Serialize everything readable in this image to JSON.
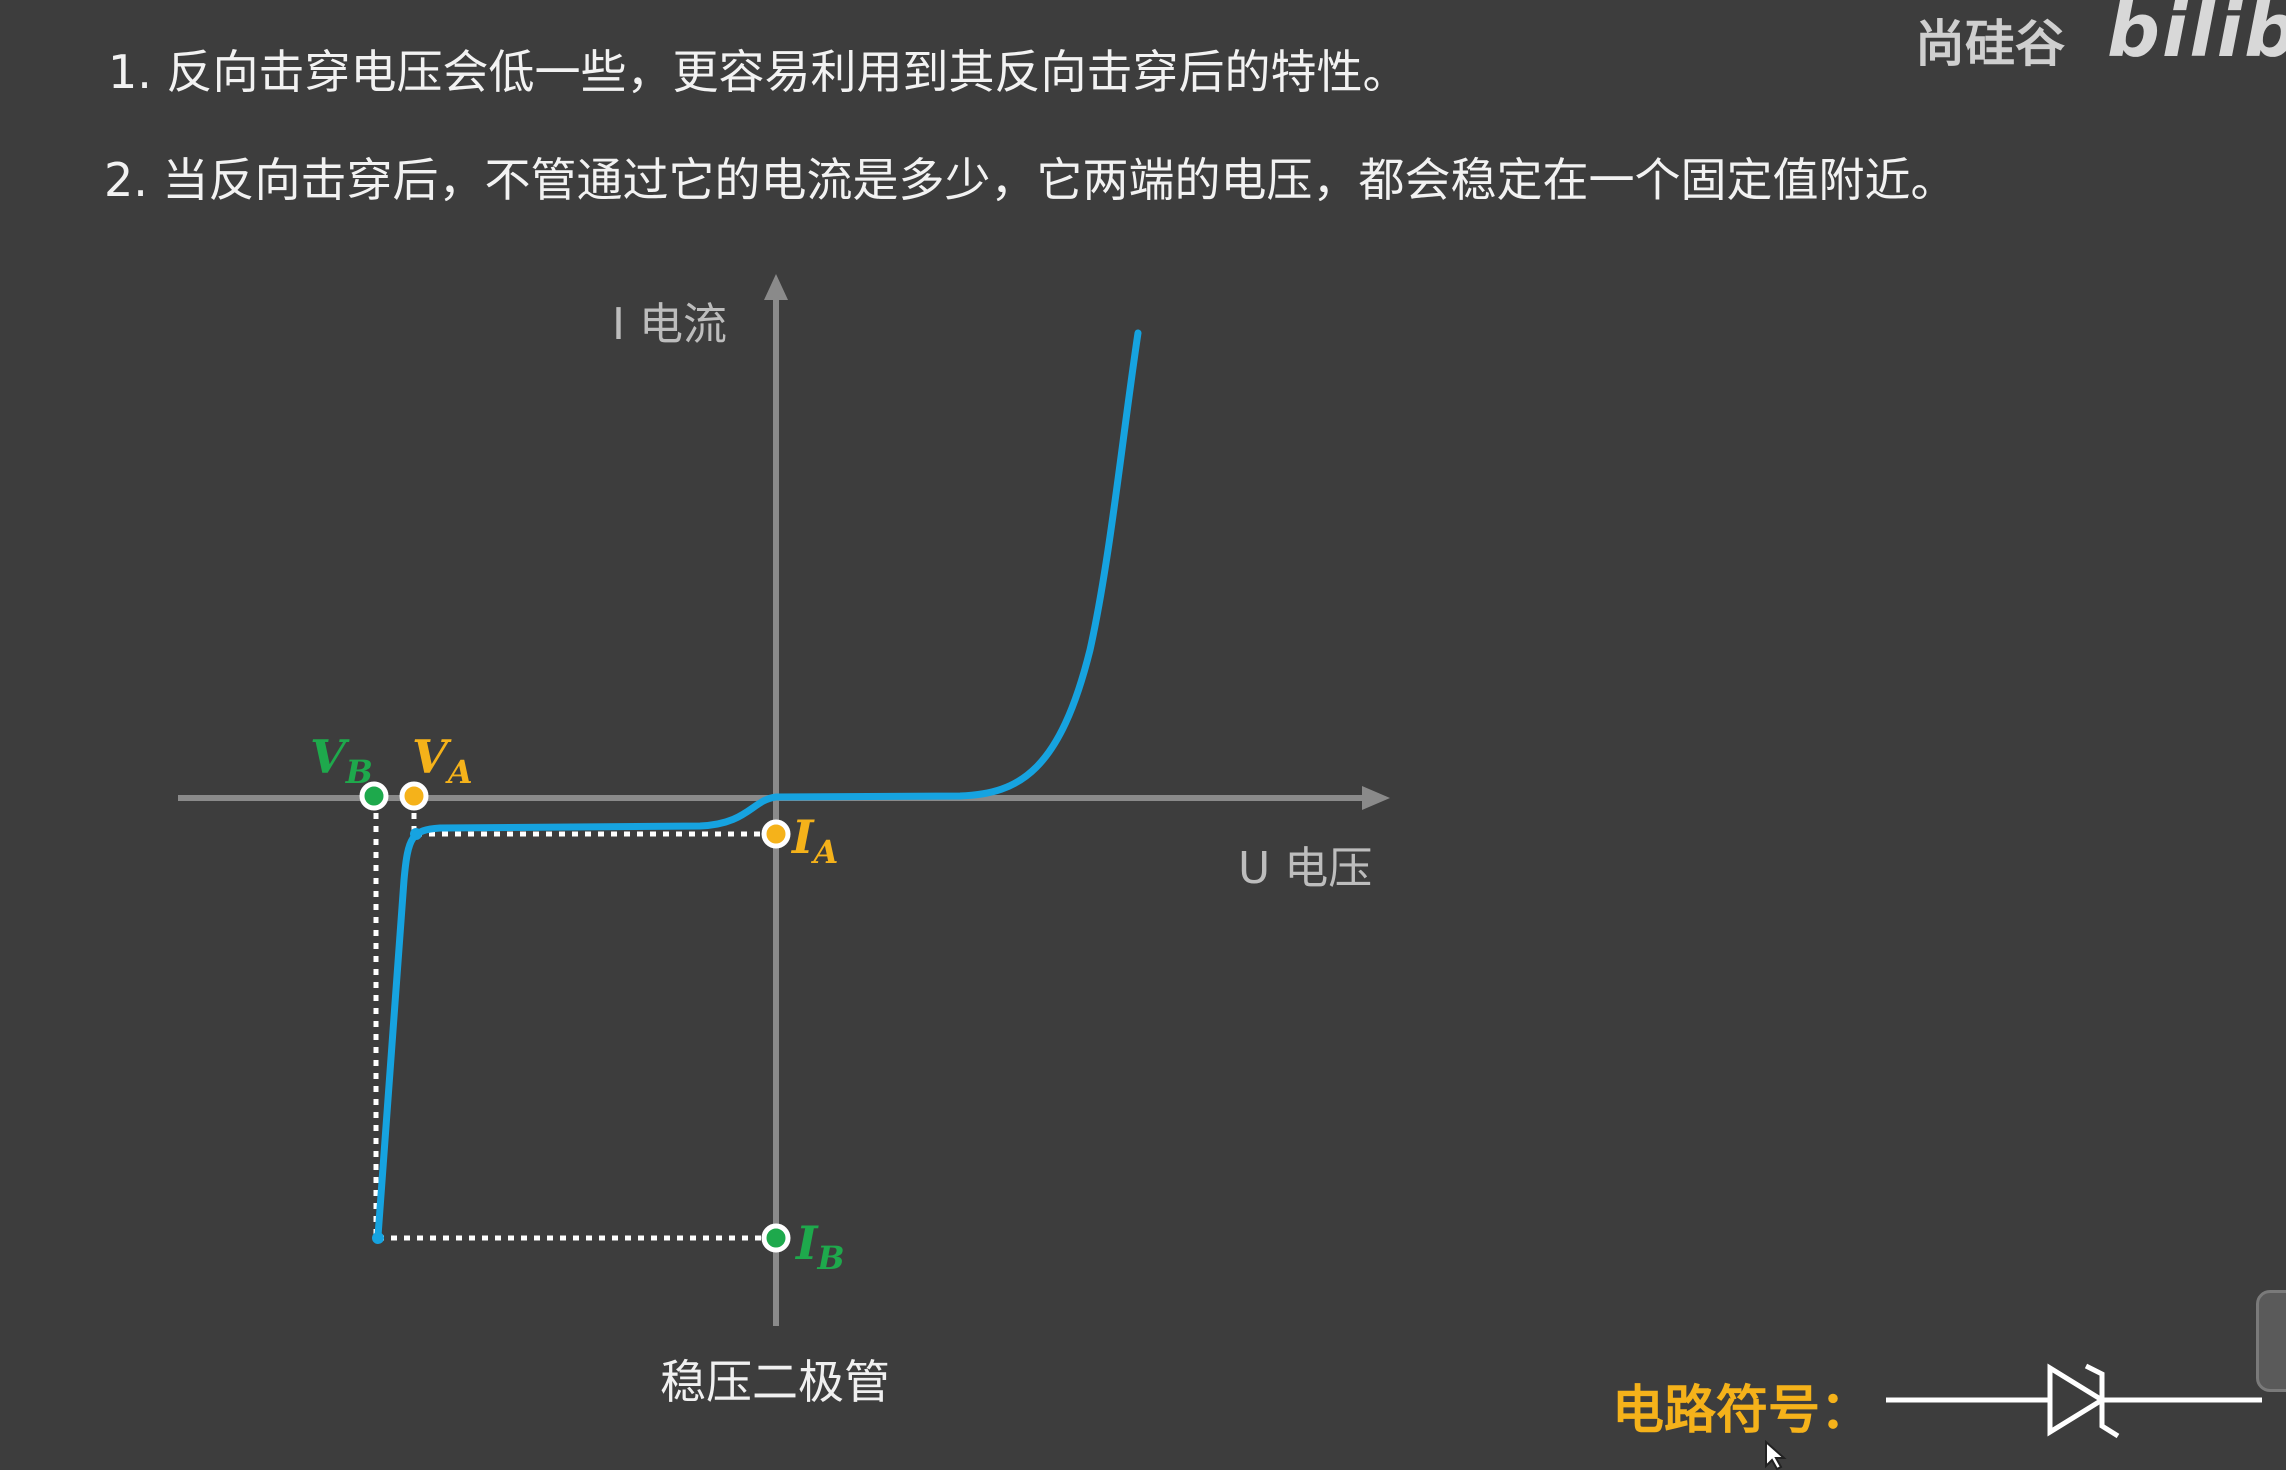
{
  "points": [
    "1. 反向击穿电压会低一些，更容易利用到其反向击穿后的特性。",
    "2. 当反向击穿后，不管通过它的电流是多少，它两端的电压，都会稳定在一个固定值附近。"
  ],
  "watermark": {
    "brand": "尚硅谷",
    "site": "bilibili"
  },
  "diagram": {
    "y_axis_label": "I 电流",
    "x_axis_label": "U 电压",
    "caption": "稳压二极管",
    "points": {
      "VB": {
        "main": "V",
        "sub": "B",
        "color": "#1ea94c"
      },
      "VA": {
        "main": "V",
        "sub": "A",
        "color": "#f5b21a"
      },
      "IA": {
        "main": "I",
        "sub": "A",
        "color": "#f5b21a"
      },
      "IB": {
        "main": "I",
        "sub": "B",
        "color": "#1ea94c"
      }
    },
    "curve_color": "#16a3e0"
  },
  "symbol": {
    "label": "电路符号：",
    "icon": "zener-diode-icon"
  }
}
